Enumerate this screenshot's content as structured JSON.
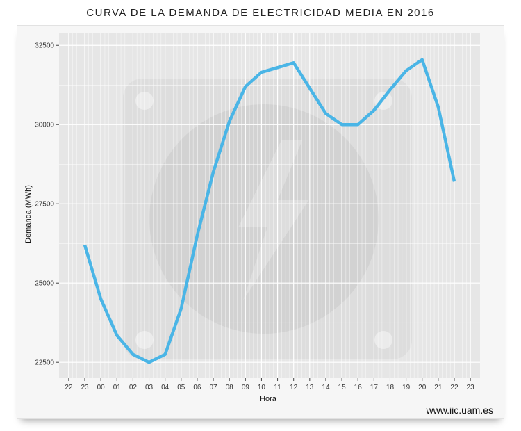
{
  "title": "CURVA DE LA DEMANDA DE ELECTRICIDAD  MEDIA EN 2016",
  "source": "www.iic.uam.es",
  "colors": {
    "line": "#4ab5e6",
    "panel": "#e6e6e6",
    "grid": "#ffffff",
    "watermark": "#d6d6d6"
  },
  "chart_data": {
    "type": "line",
    "title": "CURVA DE LA DEMANDA DE ELECTRICIDAD  MEDIA EN 2016",
    "xlabel": "Hora",
    "ylabel": "Demanda (MWh)",
    "x_ticks": [
      "22",
      "23",
      "00",
      "01",
      "02",
      "03",
      "04",
      "05",
      "06",
      "07",
      "08",
      "09",
      "10",
      "11",
      "12",
      "13",
      "14",
      "15",
      "16",
      "17",
      "18",
      "19",
      "20",
      "21",
      "22",
      "23"
    ],
    "y_ticks": [
      22500,
      25000,
      27500,
      30000,
      32500
    ],
    "ylim": [
      22000,
      32900
    ],
    "grid": true,
    "categories": [
      "23",
      "00",
      "01",
      "02",
      "03",
      "04",
      "05",
      "06",
      "07",
      "08",
      "09",
      "10",
      "11",
      "12",
      "13",
      "14",
      "15",
      "16",
      "17",
      "18",
      "19",
      "20",
      "21",
      "22"
    ],
    "series": [
      {
        "values": [
          26200,
          24500,
          23350,
          22750,
          22500,
          22750,
          24200,
          26500,
          28500,
          30100,
          31200,
          31650,
          31800,
          31950,
          31150,
          30350,
          30000,
          30000,
          30450,
          31100,
          31700,
          32050,
          30550,
          28200
        ]
      }
    ]
  }
}
